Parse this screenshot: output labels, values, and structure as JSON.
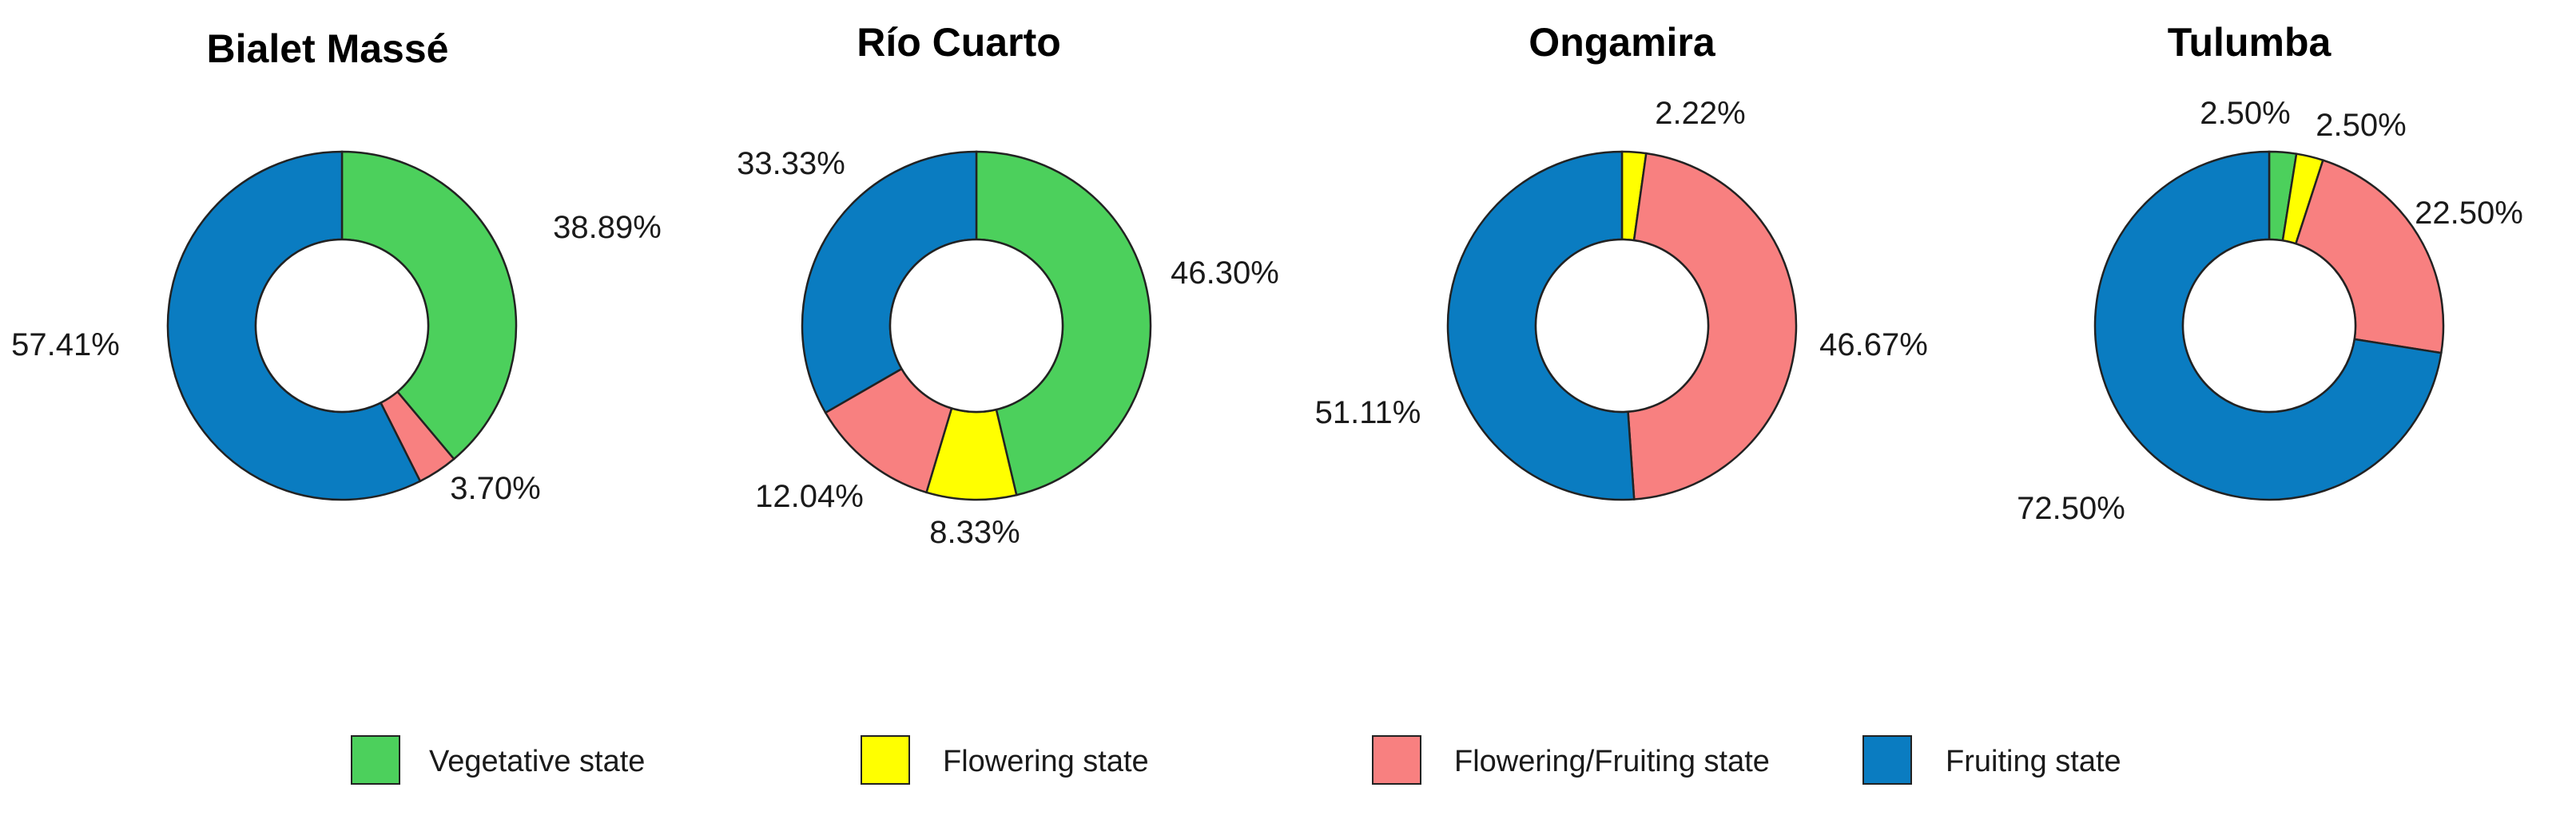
{
  "chart_data": [
    {
      "type": "pie",
      "title": "Bialet Massé",
      "categories": [
        "Vegetative state",
        "Flowering state",
        "Flowering/Fruiting state",
        "Fruiting state"
      ],
      "values": [
        38.89,
        0,
        3.7,
        57.41
      ],
      "labels": [
        "38.89%",
        "",
        "3.70%",
        "57.41%"
      ]
    },
    {
      "type": "pie",
      "title": "Río Cuarto",
      "categories": [
        "Vegetative state",
        "Flowering state",
        "Flowering/Fruiting state",
        "Fruiting state"
      ],
      "values": [
        46.3,
        8.33,
        12.04,
        33.33
      ],
      "labels": [
        "46.30%",
        "8.33%",
        "12.04%",
        "33.33%"
      ]
    },
    {
      "type": "pie",
      "title": "Ongamira",
      "categories": [
        "Vegetative state",
        "Flowering state",
        "Flowering/Fruiting state",
        "Fruiting state"
      ],
      "values": [
        0,
        2.22,
        46.67,
        51.11
      ],
      "labels": [
        "",
        "2.22%",
        "46.67%",
        "51.11%"
      ]
    },
    {
      "type": "pie",
      "title": "Tulumba",
      "categories": [
        "Vegetative state",
        "Flowering state",
        "Flowering/Fruiting state",
        "Fruiting state"
      ],
      "values": [
        2.5,
        2.5,
        22.5,
        72.5
      ],
      "labels": [
        "2.50%",
        "2.50%",
        "22.50%",
        "72.50%"
      ]
    }
  ],
  "legend": {
    "placement": "bottom",
    "items": [
      {
        "label": "Vegetative state",
        "color": "#4cd05c"
      },
      {
        "label": "Flowering state",
        "color": "#ffff00"
      },
      {
        "label": "Flowering/Fruiting state",
        "color": "#f88080"
      },
      {
        "label": "Fruiting state",
        "color": "#0a7cc1"
      }
    ]
  }
}
